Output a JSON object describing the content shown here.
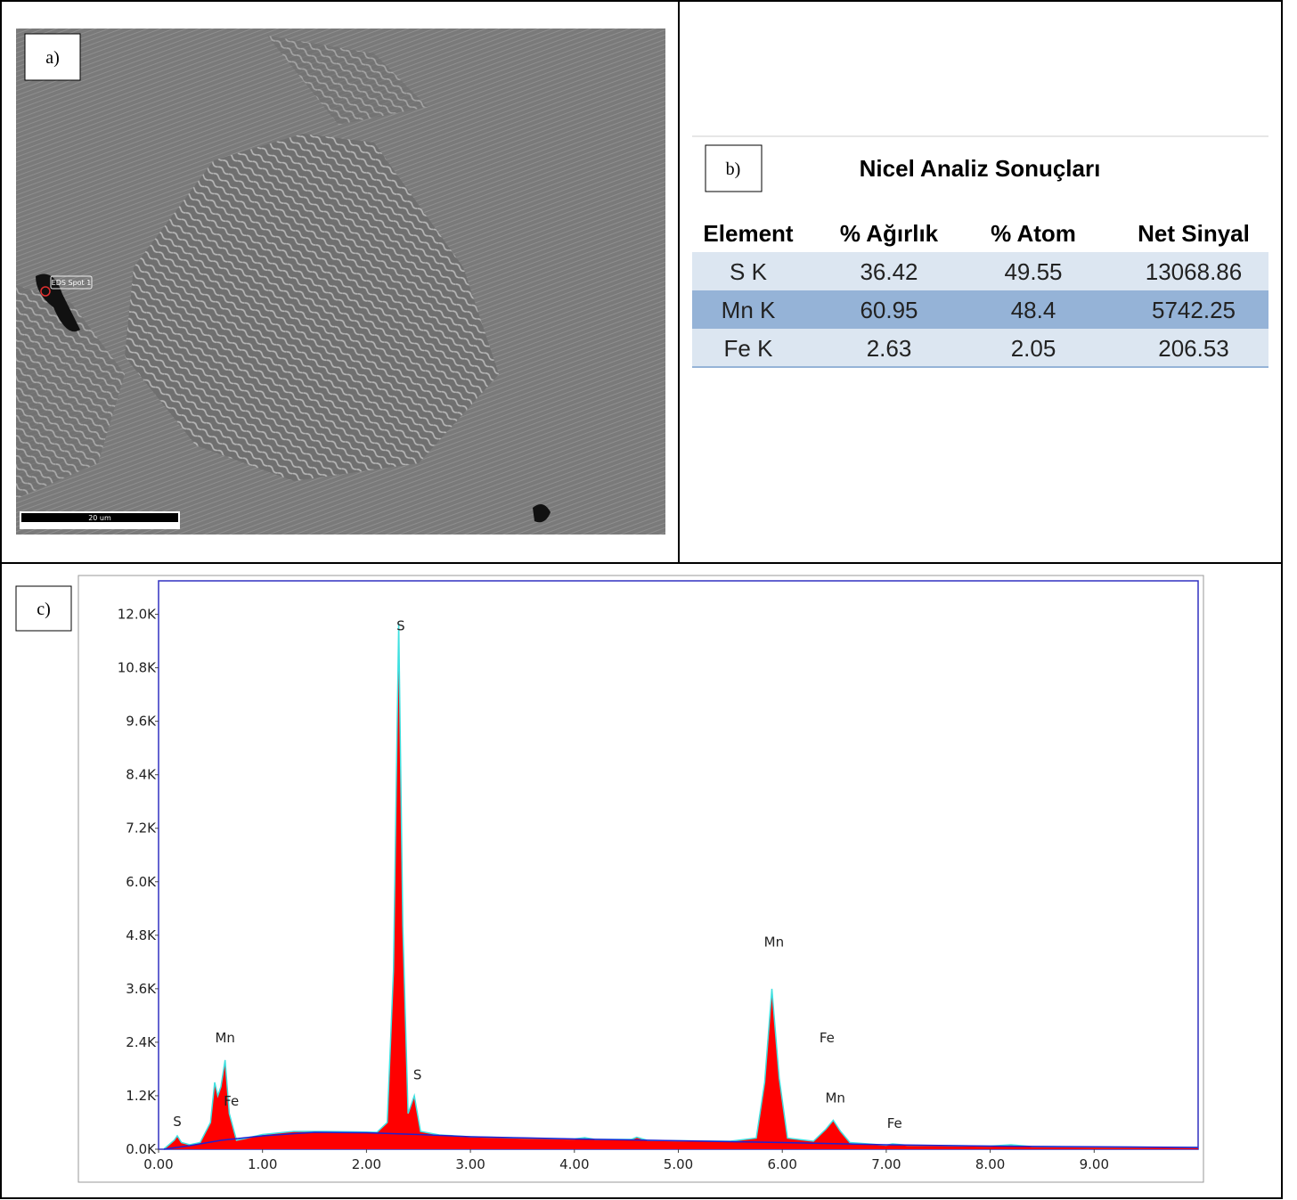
{
  "panels": {
    "a": {
      "label": "a)",
      "spot_label": "EDS Spot 1",
      "scale_bar": "20 um"
    },
    "b": {
      "label": "b)",
      "table": {
        "title": "Nicel Analiz Sonuçları",
        "columns": [
          "Element",
          "% Ağırlık",
          "% Atom",
          "Net Sinyal"
        ],
        "rows": [
          [
            "S K",
            36.42,
            49.55,
            13068.86
          ],
          [
            "Mn K",
            60.95,
            48.4,
            5742.25
          ],
          [
            "Fe K",
            2.63,
            2.05,
            206.53
          ]
        ]
      }
    },
    "c": {
      "label": "c)"
    }
  },
  "chart_data": {
    "type": "area",
    "xlim": [
      0,
      10
    ],
    "ylim": [
      0,
      12750
    ],
    "xticks": [
      {
        "value": 0,
        "label": "0.00"
      },
      {
        "value": 1,
        "label": "1.00"
      },
      {
        "value": 2,
        "label": "2.00"
      },
      {
        "value": 3,
        "label": "3.00"
      },
      {
        "value": 4,
        "label": "4.00"
      },
      {
        "value": 5,
        "label": "5.00"
      },
      {
        "value": 6,
        "label": "6.00"
      },
      {
        "value": 7,
        "label": "7.00"
      },
      {
        "value": 8,
        "label": "8.00"
      },
      {
        "value": 9,
        "label": "9.00"
      }
    ],
    "yticks": [
      {
        "value": 0,
        "label": "0.0K"
      },
      {
        "value": 1200,
        "label": "1.2K"
      },
      {
        "value": 2400,
        "label": "2.4K"
      },
      {
        "value": 3600,
        "label": "3.6K"
      },
      {
        "value": 4800,
        "label": "4.8K"
      },
      {
        "value": 6000,
        "label": "6.0K"
      },
      {
        "value": 7200,
        "label": "7.2K"
      },
      {
        "value": 8400,
        "label": "8.4K"
      },
      {
        "value": 9600,
        "label": "9.6K"
      },
      {
        "value": 10800,
        "label": "10.8K"
      },
      {
        "value": 12000,
        "label": "12.0K"
      }
    ],
    "series": [
      {
        "color": "#ff0000",
        "outline": "#40e0e0",
        "x": [
          0.05,
          0.1,
          0.15,
          0.18,
          0.22,
          0.3,
          0.4,
          0.5,
          0.54,
          0.57,
          0.6,
          0.64,
          0.68,
          0.75,
          0.85,
          1.0,
          1.3,
          1.6,
          1.9,
          2.1,
          2.2,
          2.26,
          2.31,
          2.35,
          2.4,
          2.46,
          2.52,
          2.7,
          3.0,
          3.5,
          4.0,
          4.1,
          4.2,
          4.55,
          4.6,
          4.7,
          5.0,
          5.5,
          5.75,
          5.83,
          5.9,
          5.97,
          6.05,
          6.3,
          6.42,
          6.49,
          6.56,
          6.65,
          7.0,
          7.06,
          7.2,
          8.0,
          8.2,
          8.4,
          9.0,
          10.0
        ],
        "values": [
          0,
          100,
          200,
          300,
          150,
          100,
          150,
          600,
          1500,
          1200,
          1400,
          2000,
          800,
          200,
          250,
          330,
          400,
          400,
          390,
          380,
          600,
          4000,
          11800,
          5000,
          800,
          1200,
          400,
          320,
          280,
          250,
          230,
          260,
          220,
          220,
          270,
          200,
          190,
          180,
          250,
          1500,
          3600,
          1600,
          250,
          180,
          450,
          650,
          400,
          150,
          90,
          120,
          90,
          70,
          100,
          60,
          50,
          40
        ]
      },
      {
        "color": "#2020d0",
        "x": [
          0.05,
          0.3,
          0.6,
          1.0,
          1.5,
          2.0,
          2.5,
          3.0,
          4.0,
          5.0,
          6.0,
          7.0,
          8.0,
          10.0
        ],
        "values": [
          0,
          80,
          200,
          300,
          380,
          370,
          330,
          280,
          230,
          190,
          150,
          100,
          70,
          40
        ]
      }
    ],
    "annotations": [
      {
        "text": "S",
        "x": 0.18,
        "y": 640
      },
      {
        "text": "Mn",
        "x": 0.64,
        "y": 2520
      },
      {
        "text": "Fe",
        "x": 0.7,
        "y": 1100
      },
      {
        "text": "S",
        "x": 2.33,
        "y": 11760
      },
      {
        "text": "S",
        "x": 2.49,
        "y": 1690
      },
      {
        "text": "Mn",
        "x": 5.92,
        "y": 4670
      },
      {
        "text": "Fe",
        "x": 6.43,
        "y": 2520
      },
      {
        "text": "Mn",
        "x": 6.51,
        "y": 1170
      },
      {
        "text": "Fe",
        "x": 7.08,
        "y": 600
      }
    ]
  }
}
